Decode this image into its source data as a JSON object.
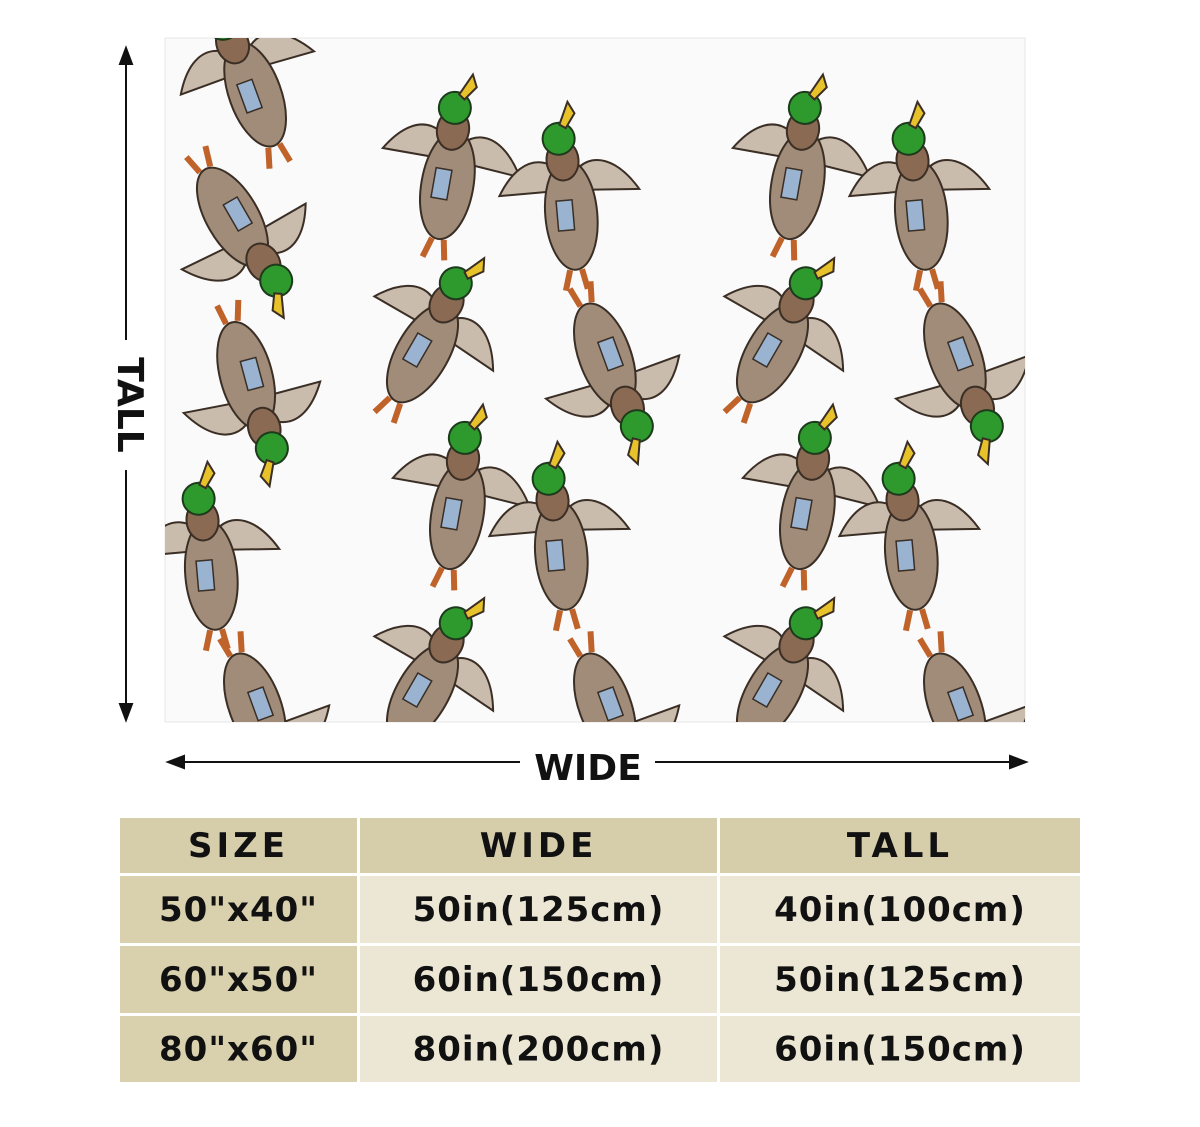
{
  "dimensions": {
    "tall_label": "TALL",
    "wide_label": "WIDE"
  },
  "table": {
    "header": [
      "SIZE",
      "WIDE",
      "TALL"
    ],
    "rows": [
      [
        "50\"x40\"",
        "50in(125cm)",
        "40in(100cm)"
      ],
      [
        "60\"x50\"",
        "60in(150cm)",
        "50in(125cm)"
      ],
      [
        "80\"x60\"",
        "80in(200cm)",
        "60in(150cm)"
      ]
    ]
  }
}
